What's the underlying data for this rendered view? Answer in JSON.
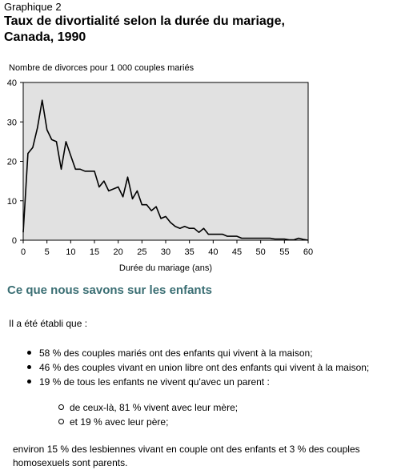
{
  "figure": {
    "label": "Graphique 2",
    "title_line1": "Taux de divortialité selon la durée du mariage,",
    "title_line2": "Canada, 1990"
  },
  "chart_data": {
    "type": "line",
    "ylabel": "Nombre de divorces pour 1 000 couples mariés",
    "xlabel": "Durée du mariage (ans)",
    "xlim": [
      0,
      60
    ],
    "ylim": [
      0,
      40
    ],
    "x_ticks": [
      0,
      5,
      10,
      15,
      20,
      25,
      30,
      35,
      40,
      45,
      50,
      55,
      60
    ],
    "y_ticks": [
      0,
      10,
      20,
      30,
      40
    ],
    "plot_background": "#e1e1e1",
    "line_color": "#000000",
    "series": [
      {
        "x": [
          0,
          1,
          2,
          3,
          4,
          5,
          6,
          7,
          8,
          9,
          10,
          11,
          12,
          13,
          14,
          15,
          16,
          17,
          18,
          19,
          20,
          21,
          22,
          23,
          24,
          25,
          26,
          27,
          28,
          29,
          30,
          31,
          32,
          33,
          34,
          35,
          36,
          37,
          38,
          39,
          40,
          41,
          42,
          43,
          44,
          45,
          46,
          47,
          48,
          49,
          50,
          51,
          52,
          53,
          54,
          55,
          56,
          57,
          58,
          59,
          60
        ],
        "y": [
          2,
          22,
          23.5,
          28.5,
          35.5,
          28,
          25.5,
          25,
          18,
          25,
          21.5,
          18,
          18,
          17.5,
          17.5,
          17.5,
          13.5,
          15,
          12.5,
          13,
          13.5,
          11,
          16,
          10.5,
          12.5,
          9,
          9,
          7.5,
          8.5,
          5.5,
          6,
          4.5,
          3.5,
          3,
          3.5,
          3,
          3,
          2,
          3,
          1.5,
          1.5,
          1.5,
          1.5,
          1,
          1,
          1,
          0.5,
          0.5,
          0.5,
          0.5,
          0.5,
          0.5,
          0.5,
          0.3,
          0.3,
          0.3,
          0.1,
          0.1,
          0.5,
          0.2,
          0
        ]
      }
    ]
  },
  "section": {
    "heading": "Ce que nous savons sur les enfants",
    "intro": "Il a été établi que :",
    "bullets": [
      "58 % des couples mariés ont des enfants qui vivent à la maison;",
      "46 % des couples vivant en union libre ont des enfants qui vivent à la maison;",
      "19 % de tous les enfants ne vivent qu'avec un parent :"
    ],
    "sub_bullets": [
      "de ceux-là, 81 % vivent avec leur mère;",
      "et 19 % avec leur père;"
    ],
    "closing": "environ 15 % des lesbiennes vivant en couple ont des enfants et 3 % des couples homosexuels sont parents."
  }
}
